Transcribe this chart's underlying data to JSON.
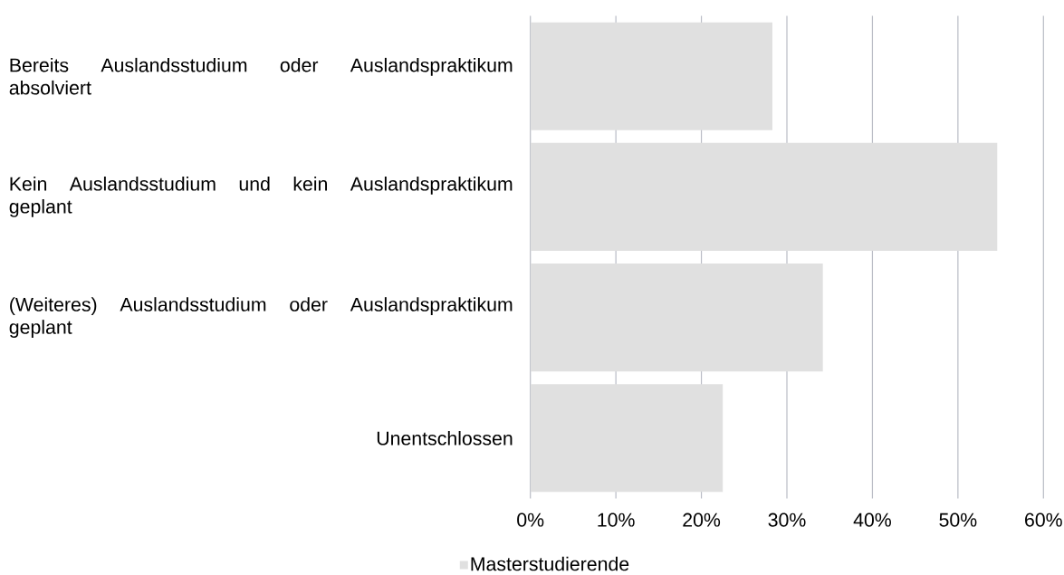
{
  "chart_data": {
    "type": "bar",
    "orientation": "horizontal",
    "categories": [
      "Bereits Auslandsstudium oder Auslandspraktikum absolviert",
      "Kein Auslandsstudium und kein Auslandspraktikum geplant",
      "(Weiteres) Auslandsstudium oder Auslandspraktikum geplant",
      "Unentschlossen"
    ],
    "series": [
      {
        "name": "Masterstudierende",
        "color": "#e0e0e0",
        "values": [
          28.3,
          54.6,
          34.2,
          22.5
        ]
      }
    ],
    "xlim": [
      0,
      60
    ],
    "xticks": [
      {
        "value": 0,
        "label": "0%"
      },
      {
        "value": 10,
        "label": "10%"
      },
      {
        "value": 20,
        "label": "20%"
      },
      {
        "value": 30,
        "label": "30%"
      },
      {
        "value": 40,
        "label": "40%"
      },
      {
        "value": 50,
        "label": "50%"
      },
      {
        "value": 60,
        "label": "60%"
      }
    ],
    "grid": "x",
    "legend": "bottom"
  }
}
